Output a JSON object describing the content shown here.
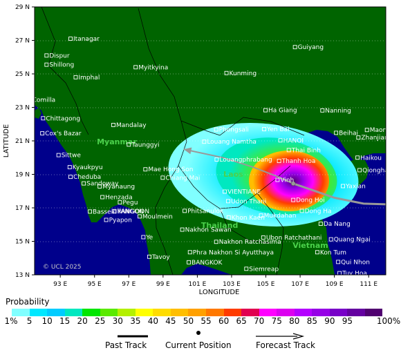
{
  "map": {
    "xlabel": "LONGITUDE",
    "ylabel": "LATITUDE",
    "lon_range": [
      91.5,
      112
    ],
    "lat_range": [
      13,
      29
    ],
    "lon_ticks": [
      "93 E",
      "95 E",
      "97 E",
      "99 E",
      "101 E",
      "103 E",
      "105 E",
      "107 E",
      "109 E",
      "111 E"
    ],
    "lat_ticks": [
      "29 N",
      "27 N",
      "25 N",
      "23 N",
      "21 N",
      "19 N",
      "17 N",
      "15 N",
      "13 N"
    ],
    "copyright": "© UCL 2025",
    "colors": {
      "land": "#006400",
      "sea": "#00008b",
      "track": "#999999",
      "city_label": "#ffffff",
      "country_label": "#4bd14b"
    },
    "countries": [
      {
        "name": "Myanmar",
        "lon": 96.3,
        "lat": 20.8
      },
      {
        "name": "Laos",
        "lon": 103.1,
        "lat": 18.85
      },
      {
        "name": "Thailand",
        "lon": 102.3,
        "lat": 15.8
      },
      {
        "name": "Vietnam",
        "lon": 107.6,
        "lat": 14.6
      }
    ],
    "cities": [
      {
        "name": "Itanagar",
        "lon": 93.6,
        "lat": 27.1
      },
      {
        "name": "Dispur",
        "lon": 92.2,
        "lat": 26.1
      },
      {
        "name": "Shillong",
        "lon": 92.2,
        "lat": 25.55
      },
      {
        "name": "Imphal",
        "lon": 93.9,
        "lat": 24.8
      },
      {
        "name": "Myitkyina",
        "lon": 97.4,
        "lat": 25.4
      },
      {
        "name": "Kunming",
        "lon": 102.7,
        "lat": 25.05
      },
      {
        "name": "Guiyang",
        "lon": 106.7,
        "lat": 26.6
      },
      {
        "name": "Comilla",
        "lon": 91.2,
        "lat": 23.45
      },
      {
        "name": "Chittagong",
        "lon": 92.0,
        "lat": 22.35
      },
      {
        "name": "Mandalay",
        "lon": 96.1,
        "lat": 21.95
      },
      {
        "name": "Cox's Bazar",
        "lon": 91.95,
        "lat": 21.45
      },
      {
        "name": "Ha Giang",
        "lon": 104.98,
        "lat": 22.83
      },
      {
        "name": "Nanning",
        "lon": 108.3,
        "lat": 22.82
      },
      {
        "name": "Maoming",
        "lon": 110.9,
        "lat": 21.65
      },
      {
        "name": "Beihai",
        "lon": 109.1,
        "lat": 21.48
      },
      {
        "name": "Zhanjiang",
        "lon": 110.4,
        "lat": 21.2
      },
      {
        "name": "Phongsali",
        "lon": 102.1,
        "lat": 21.68
      },
      {
        "name": "Yen Bai",
        "lon": 104.9,
        "lat": 21.7
      },
      {
        "name": "HANOI",
        "lon": 105.85,
        "lat": 21.03
      },
      {
        "name": "Louang Namtha",
        "lon": 101.4,
        "lat": 20.95
      },
      {
        "name": "Taunggyi",
        "lon": 97.0,
        "lat": 20.78
      },
      {
        "name": "Thai Binh",
        "lon": 106.34,
        "lat": 20.45
      },
      {
        "name": "Thanh Hoa",
        "lon": 105.77,
        "lat": 19.8
      },
      {
        "name": "Haikou",
        "lon": 110.35,
        "lat": 20.0
      },
      {
        "name": "Sittwe",
        "lon": 92.9,
        "lat": 20.15
      },
      {
        "name": "Louangphrabang",
        "lon": 102.13,
        "lat": 19.89
      },
      {
        "name": "Kyaukpyu",
        "lon": 93.55,
        "lat": 19.43
      },
      {
        "name": "Mae Hong Son",
        "lon": 97.97,
        "lat": 19.3
      },
      {
        "name": "Qionghai",
        "lon": 110.47,
        "lat": 19.25
      },
      {
        "name": "Cheduba",
        "lon": 93.6,
        "lat": 18.85
      },
      {
        "name": "Chiang Mai",
        "lon": 98.98,
        "lat": 18.8
      },
      {
        "name": "Vinh",
        "lon": 105.68,
        "lat": 18.67
      },
      {
        "name": "Sandoway",
        "lon": 94.37,
        "lat": 18.46
      },
      {
        "name": "Yaxian",
        "lon": 109.5,
        "lat": 18.3
      },
      {
        "name": "Myanaung",
        "lon": 95.3,
        "lat": 18.28
      },
      {
        "name": "VIENTIANE",
        "lon": 102.6,
        "lat": 17.97
      },
      {
        "name": "Henzada",
        "lon": 95.46,
        "lat": 17.64
      },
      {
        "name": "Udon Thani",
        "lon": 102.8,
        "lat": 17.4
      },
      {
        "name": "Dong Hoi",
        "lon": 106.6,
        "lat": 17.47
      },
      {
        "name": "Pegu",
        "lon": 96.48,
        "lat": 17.33
      },
      {
        "name": "Dong Ha",
        "lon": 107.1,
        "lat": 16.82
      },
      {
        "name": "YANGON",
        "lon": 96.16,
        "lat": 16.8
      },
      {
        "name": "RANGOON",
        "lon": 96.16,
        "lat": 16.8
      },
      {
        "name": "Phitsanulok",
        "lon": 100.26,
        "lat": 16.82
      },
      {
        "name": "Bassein",
        "lon": 94.73,
        "lat": 16.78
      },
      {
        "name": "Moulmein",
        "lon": 97.63,
        "lat": 16.49
      },
      {
        "name": "Khon Kaen",
        "lon": 102.83,
        "lat": 16.43
      },
      {
        "name": "Pyapon",
        "lon": 95.68,
        "lat": 16.28
      },
      {
        "name": "Da Nang",
        "lon": 108.2,
        "lat": 16.05
      },
      {
        "name": "Nakhon Sawan",
        "lon": 100.12,
        "lat": 15.7
      },
      {
        "name": "Mukdahan",
        "lon": 104.72,
        "lat": 16.54
      },
      {
        "name": "Ye",
        "lon": 97.85,
        "lat": 15.25
      },
      {
        "name": "Ubon Ratchathani",
        "lon": 104.85,
        "lat": 15.23
      },
      {
        "name": "Quang Ngai",
        "lon": 108.8,
        "lat": 15.12
      },
      {
        "name": "Nakhon Ratchasima",
        "lon": 102.1,
        "lat": 14.97
      },
      {
        "name": "Phra Nakhon Si Ayutthaya",
        "lon": 100.57,
        "lat": 14.35
      },
      {
        "name": "Kon Tum",
        "lon": 108.0,
        "lat": 14.35
      },
      {
        "name": "Tavoy",
        "lon": 98.2,
        "lat": 14.08
      },
      {
        "name": "BANGKOK",
        "lon": 100.5,
        "lat": 13.75
      },
      {
        "name": "Qui Nhon",
        "lon": 109.22,
        "lat": 13.77
      },
      {
        "name": "Siemreap",
        "lon": 103.86,
        "lat": 13.36
      },
      {
        "name": "Tuy Hoa",
        "lon": 109.3,
        "lat": 13.1
      }
    ],
    "past_track": [
      [
        112.5,
        17.2
      ],
      [
        110.7,
        17.25
      ],
      [
        109.0,
        17.6
      ],
      [
        107.6,
        18.1
      ],
      [
        106.6,
        18.45
      ]
    ],
    "forecast_track": [
      [
        106.6,
        18.45
      ],
      [
        105.6,
        18.9
      ],
      [
        104.2,
        19.45
      ],
      [
        102.5,
        20.0
      ],
      [
        100.2,
        20.5
      ]
    ],
    "current_position": [
      106.6,
      18.45
    ]
  },
  "legend": {
    "title": "Probability",
    "colors": [
      "#80ffff",
      "#00e8ff",
      "#00ccff",
      "#00e8c0",
      "#00e600",
      "#5aea00",
      "#b4f000",
      "#ffff00",
      "#ffdc00",
      "#ffbe00",
      "#ffa000",
      "#ff7800",
      "#ff3c00",
      "#e10050",
      "#ff00ff",
      "#dc00f0",
      "#b400ff",
      "#9600e6",
      "#7800c8",
      "#6400a0",
      "#500070"
    ],
    "labels": [
      "1%",
      "5",
      "10",
      "15",
      "20",
      "25",
      "30",
      "35",
      "40",
      "45",
      "50",
      "55",
      "60",
      "65",
      "70",
      "75",
      "80",
      "85",
      "90",
      "95",
      "100%"
    ]
  },
  "track_key": {
    "past": "Past Track",
    "current": "Current Position",
    "forecast": "Forecast Track"
  }
}
